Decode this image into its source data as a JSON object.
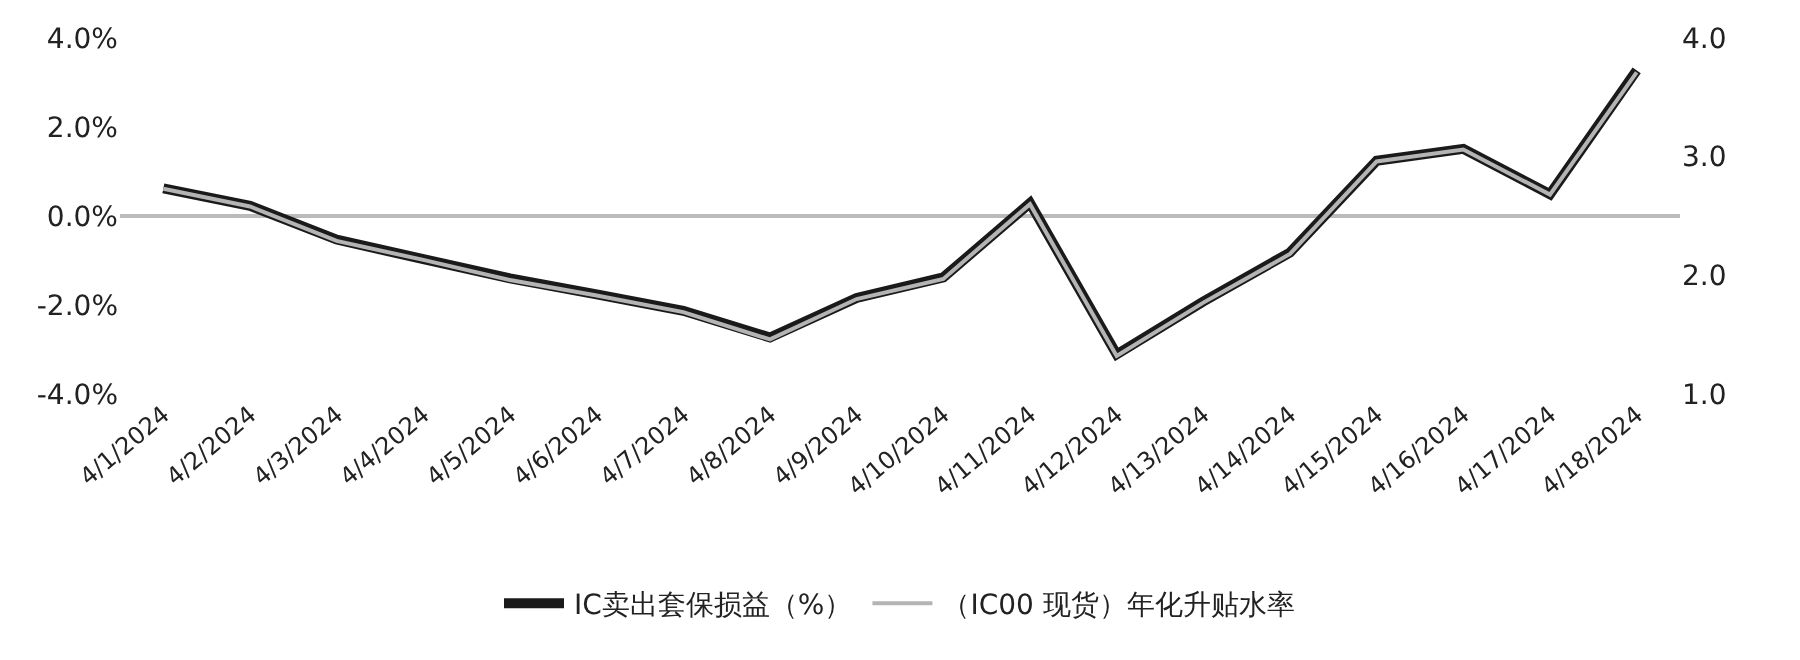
{
  "chart_data": {
    "type": "line",
    "categories": [
      "4/1/2024",
      "4/2/2024",
      "4/3/2024",
      "4/4/2024",
      "4/5/2024",
      "4/6/2024",
      "4/7/2024",
      "4/8/2024",
      "4/9/2024",
      "4/10/2024",
      "4/11/2024",
      "4/12/2024",
      "4/13/2024",
      "4/14/2024",
      "4/15/2024",
      "4/16/2024",
      "4/17/2024",
      "4/18/2024"
    ],
    "series": [
      {
        "name": "IC卖出套保损益（%）",
        "color": "#1a1a1a",
        "values": [
          0.62,
          0.23,
          -0.53,
          -0.97,
          -1.4,
          -1.76,
          -2.13,
          -2.73,
          -1.84,
          -1.38,
          0.29,
          -3.11,
          -1.92,
          -0.82,
          1.24,
          1.51,
          0.49,
          3.27
        ]
      },
      {
        "name": "（IC00 现货）年化升贴水率",
        "color": "#b4b4b4",
        "axis": "y2",
        "values": [
          2.73,
          2.58,
          2.29,
          2.13,
          1.96,
          1.83,
          1.69,
          1.46,
          1.8,
          1.97,
          2.6,
          1.32,
          1.77,
          2.18,
          2.96,
          3.06,
          2.68,
          3.71
        ]
      }
    ],
    "ylim": [
      -4,
      4
    ],
    "yticks": [
      {
        "value": -4,
        "label": "-4.0%"
      },
      {
        "value": -2,
        "label": "-2.0%"
      },
      {
        "value": 0,
        "label": "0.0%"
      },
      {
        "value": 2,
        "label": "2.0%"
      },
      {
        "value": 4,
        "label": "4.0%"
      }
    ],
    "y2lim": [
      1,
      4
    ],
    "y2ticks": [
      {
        "value": 1,
        "label": "1.0"
      },
      {
        "value": 2,
        "label": "2.0"
      },
      {
        "value": 3,
        "label": "3.0"
      },
      {
        "value": 4,
        "label": "4.0"
      }
    ],
    "ref_lines": [
      {
        "axis": "y",
        "value": 0,
        "color": "#bbbbbb"
      }
    ],
    "legend": "bottom",
    "marker": "none",
    "line_style": "solid"
  }
}
